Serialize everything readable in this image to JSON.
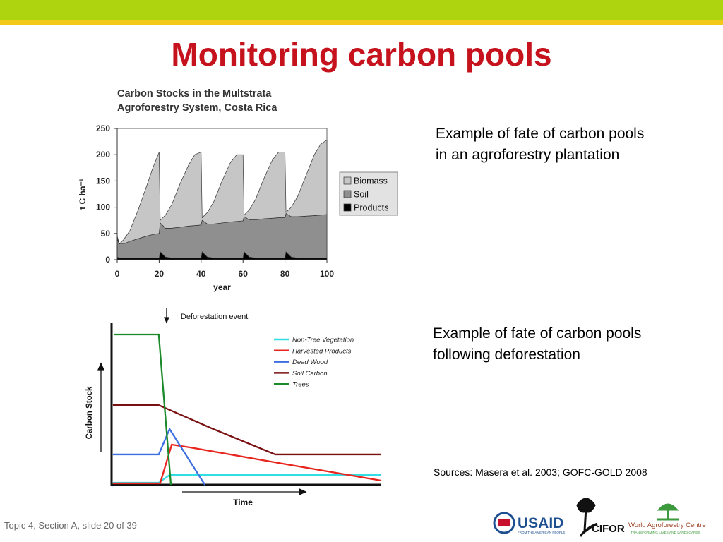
{
  "slide": {
    "title": "Monitoring carbon pools",
    "caption_1": "Example of fate of carbon pools in an agroforestry plantation",
    "caption_2": "Example of fate of carbon pools following deforestation",
    "sources": "Sources: Masera et al. 2003; GOFC-GOLD 2008",
    "footer": "Topic 4, Section A, slide 20 of 39",
    "logos": {
      "usaid": "USAID",
      "usaid_tagline": "FROM THE AMERICAN PEOPLE",
      "cifor": "CIFOR",
      "icraf": "World Agroforestry Centre",
      "icraf_tagline": "TRANSFORMING LIVES AND LANDSCAPES"
    }
  },
  "chart_data": [
    {
      "type": "area",
      "stacked": true,
      "title": "Carbon Stocks in the Multstrata Agroforestry System, Costa Rica",
      "x_label": "year",
      "y_label": "t C ha⁻¹",
      "x": [
        0,
        1,
        3,
        6,
        10,
        14,
        17,
        20,
        20.5,
        23,
        26,
        30,
        34,
        37,
        40,
        40.5,
        43,
        46,
        50,
        54,
        57,
        60,
        60.5,
        63,
        66,
        70,
        74,
        77,
        80,
        80.5,
        83,
        86,
        90,
        94,
        97,
        100
      ],
      "xlim": [
        0,
        100
      ],
      "xticks": [
        0,
        20,
        40,
        60,
        80,
        100
      ],
      "ylim": [
        0,
        250
      ],
      "yticks": [
        0,
        50,
        100,
        150,
        200,
        250
      ],
      "legend": "right",
      "series": [
        {
          "name": "Products",
          "color": "#000000",
          "values": [
            5,
            3,
            3,
            3,
            3,
            3,
            3,
            3,
            15,
            5,
            3,
            3,
            3,
            3,
            3,
            15,
            5,
            3,
            3,
            3,
            3,
            3,
            15,
            5,
            3,
            3,
            3,
            3,
            3,
            15,
            5,
            3,
            3,
            3,
            3,
            3
          ]
        },
        {
          "name": "Soil",
          "color": "#8f8f8f",
          "values": [
            35,
            27,
            27,
            32,
            37,
            42,
            45,
            47,
            55,
            55,
            57,
            59,
            61,
            62,
            63,
            60,
            63,
            65,
            67,
            69,
            70,
            71,
            67,
            71,
            73,
            75,
            76,
            77,
            77,
            73,
            77,
            79,
            80,
            81,
            82,
            83
          ]
        },
        {
          "name": "Biomass",
          "color": "#c6c6c6",
          "values": [
            5,
            0,
            8,
            20,
            55,
            95,
            127,
            155,
            5,
            25,
            45,
            83,
            116,
            135,
            139,
            5,
            22,
            42,
            80,
            113,
            127,
            126,
            3,
            19,
            39,
            77,
            111,
            125,
            125,
            2,
            18,
            38,
            77,
            116,
            135,
            142
          ]
        }
      ]
    },
    {
      "type": "line",
      "x_label": "Time",
      "y_label": "Carbon Stock",
      "annotation": "Deforestation event",
      "annotation_x": 20.4,
      "xlim": [
        0,
        100
      ],
      "ylim": [
        0,
        100
      ],
      "legend": "upper right",
      "series": [
        {
          "name": "Non-Tree Vegetation",
          "color": "#33dde4",
          "x": [
            0.5,
            17.5,
            21.5,
            100
          ],
          "values": [
            1.3,
            1.3,
            6.1,
            6.1
          ]
        },
        {
          "name": "Harvested Products",
          "color": "#e8261f",
          "x": [
            0.5,
            18,
            22.3,
            29.3,
            63.4,
            100
          ],
          "values": [
            0.9,
            0.9,
            24.9,
            23.1,
            13.1,
            2.6
          ]
        },
        {
          "name": "Dead Wood",
          "color": "#3d6fe0",
          "x": [
            0.5,
            17.5,
            21.5,
            34.6
          ],
          "values": [
            18.8,
            18.8,
            34.5,
            0
          ]
        },
        {
          "name": "Soil Carbon",
          "color": "#7a1010",
          "x": [
            0.5,
            17.5,
            37,
            60.7,
            100
          ],
          "values": [
            49.3,
            49.3,
            35,
            18.8,
            18.8
          ]
        },
        {
          "name": "Trees",
          "color": "#1a8a2a",
          "x": [
            1,
            17.5,
            22
          ],
          "values": [
            93,
            93,
            0
          ]
        }
      ]
    }
  ]
}
